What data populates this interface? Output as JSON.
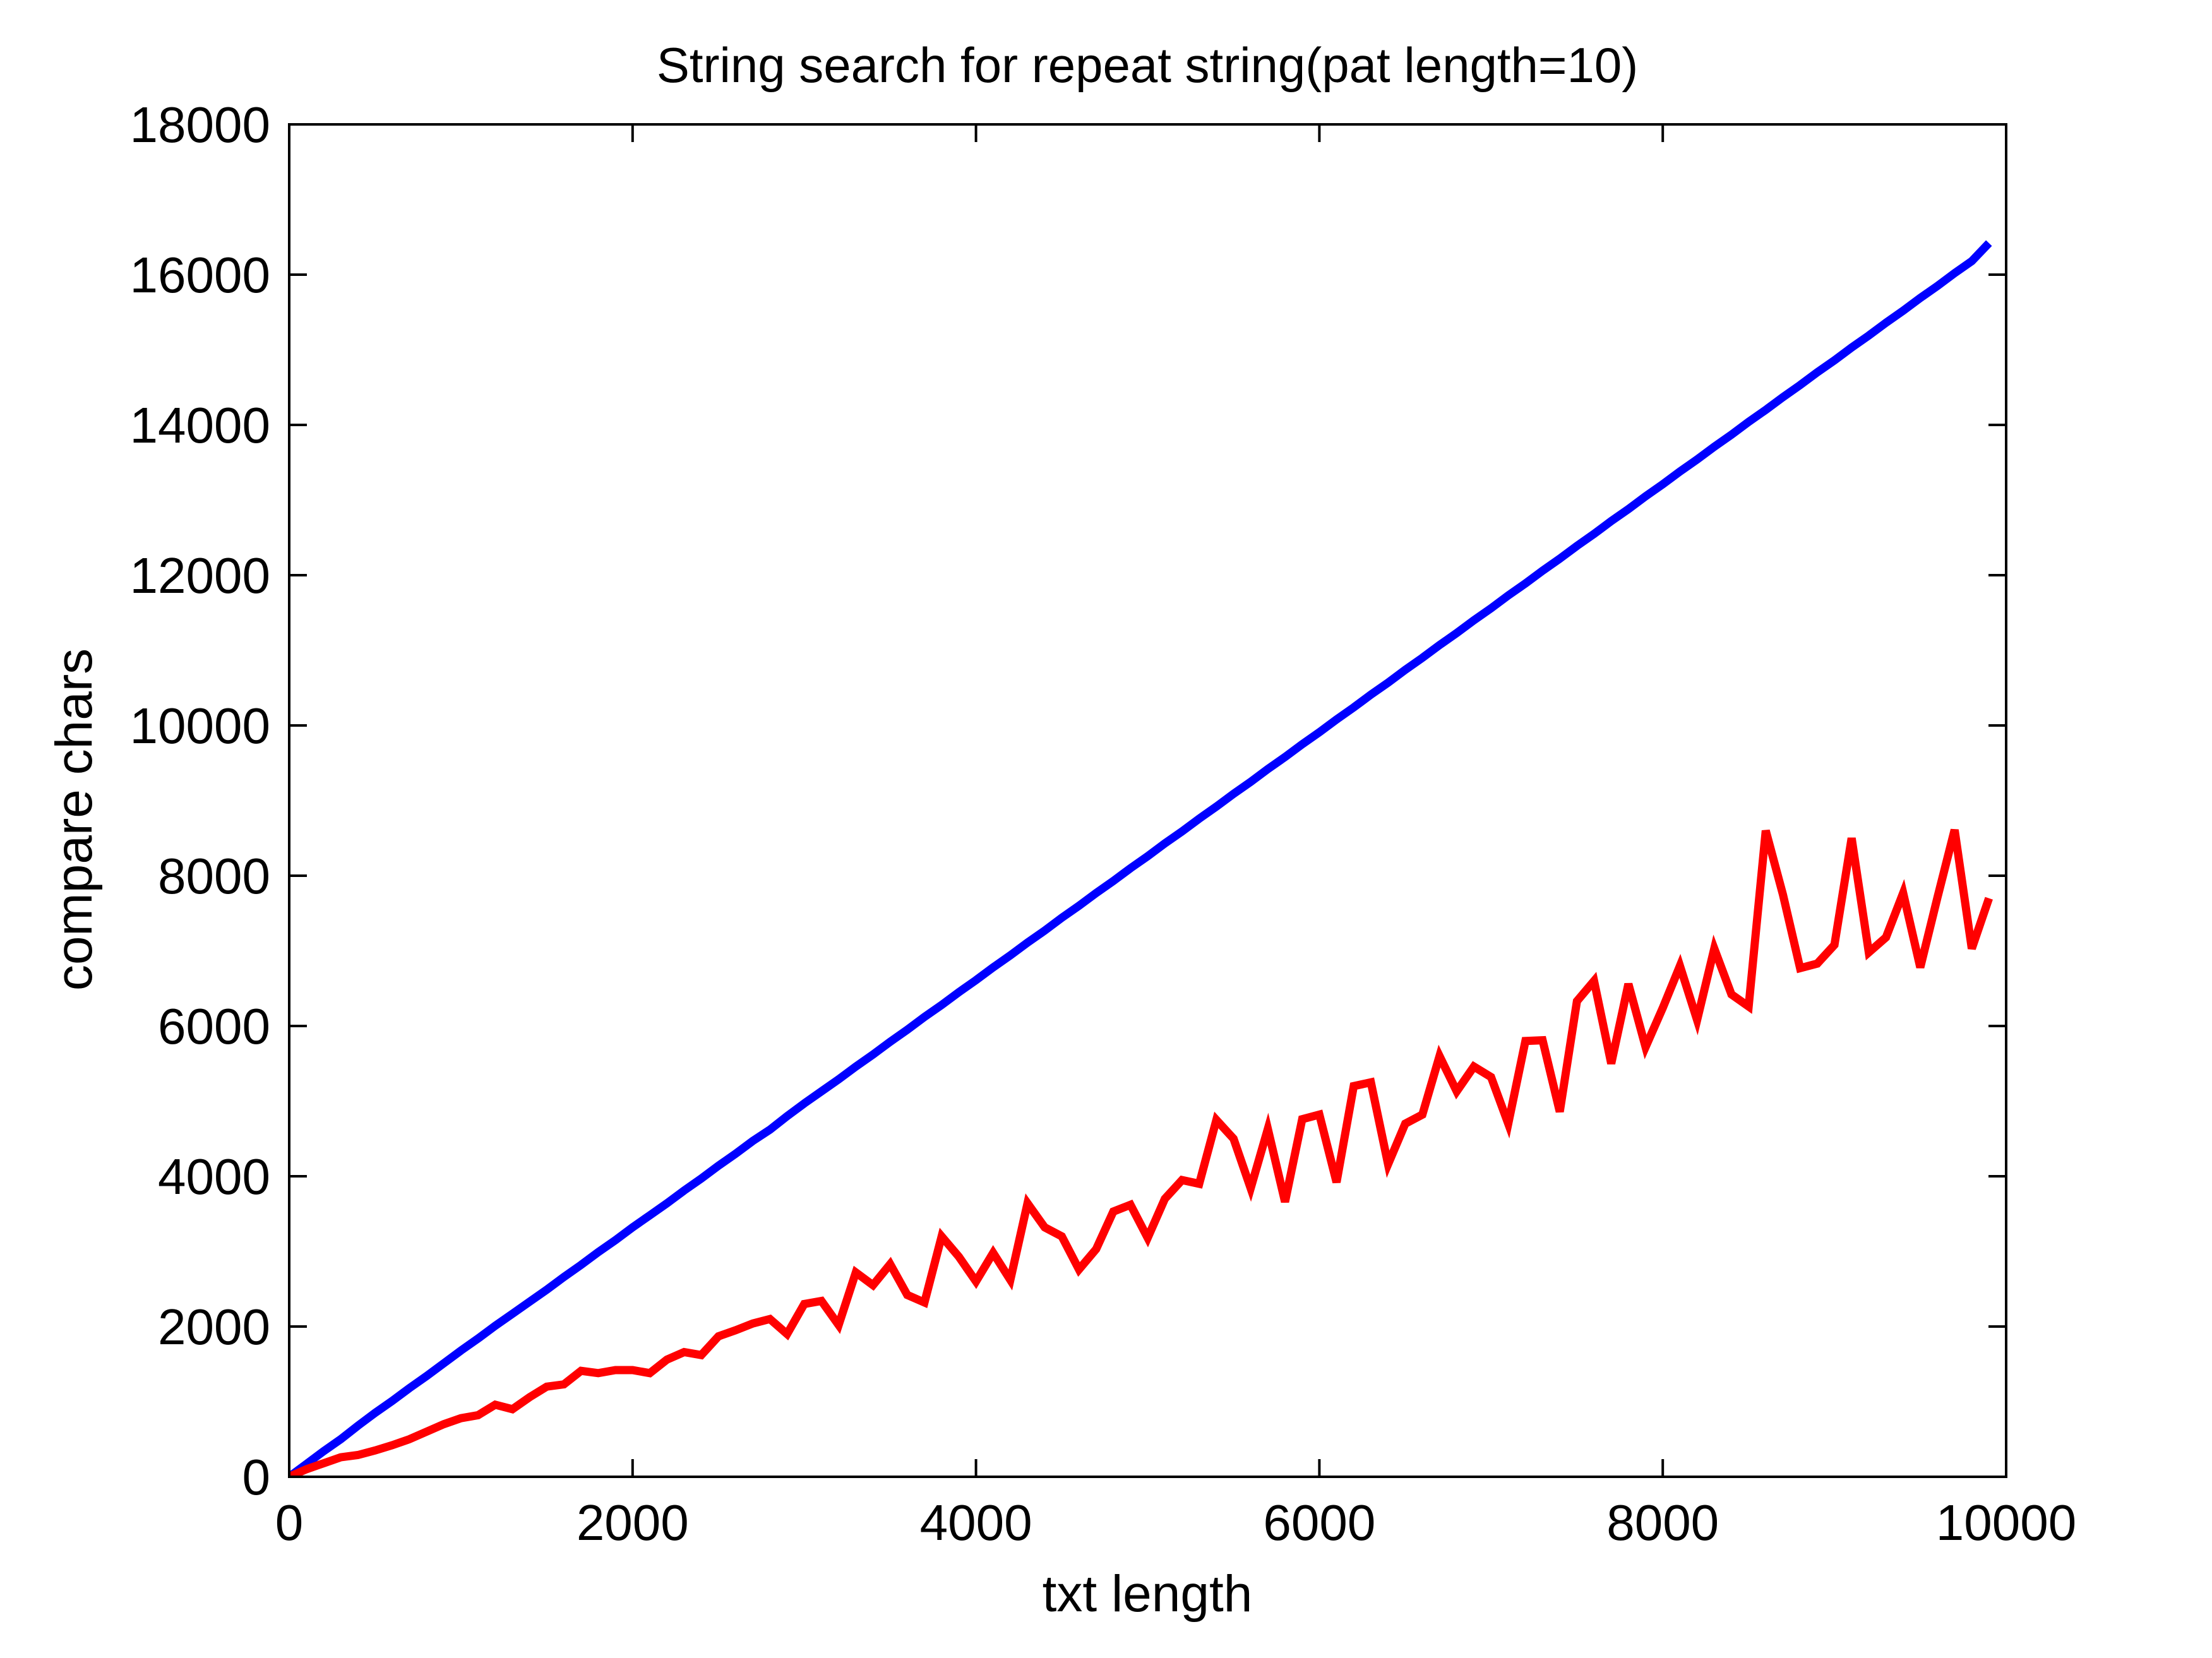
{
  "chart_data": {
    "type": "line",
    "title": "String search for repeat string(pat length=10)",
    "xlabel": "txt length",
    "ylabel": "compare chars",
    "xlim": [
      0,
      10000
    ],
    "ylim": [
      0,
      18000
    ],
    "xticks": [
      0,
      2000,
      4000,
      6000,
      8000,
      10000
    ],
    "yticks": [
      0,
      2000,
      4000,
      6000,
      8000,
      10000,
      12000,
      14000,
      16000,
      18000
    ],
    "xtick_labels": [
      "0",
      "2000",
      "4000",
      "6000",
      "8000",
      "10000"
    ],
    "ytick_labels": [
      "0",
      "2000",
      "4000",
      "6000",
      "8000",
      "10000",
      "12000",
      "14000",
      "16000",
      "18000"
    ],
    "grid": false,
    "box": true,
    "series": [
      {
        "color": "#0000ff",
        "x": [
          0,
          100,
          200,
          300,
          400,
          500,
          600,
          700,
          800,
          900,
          1000,
          1100,
          1200,
          1300,
          1400,
          1500,
          1600,
          1700,
          1800,
          1900,
          2000,
          2100,
          2200,
          2300,
          2400,
          2500,
          2600,
          2700,
          2800,
          2900,
          3000,
          3100,
          3200,
          3300,
          3400,
          3500,
          3600,
          3700,
          3800,
          3900,
          4000,
          4100,
          4200,
          4300,
          4400,
          4500,
          4600,
          4700,
          4800,
          4900,
          5000,
          5100,
          5200,
          5300,
          5400,
          5500,
          5600,
          5700,
          5800,
          5900,
          6000,
          6100,
          6200,
          6300,
          6400,
          6500,
          6600,
          6700,
          6800,
          6900,
          7000,
          7100,
          7200,
          7300,
          7400,
          7500,
          7600,
          7700,
          7800,
          7900,
          8000,
          8100,
          8200,
          8300,
          8400,
          8500,
          8600,
          8700,
          8800,
          8900,
          9000,
          9100,
          9200,
          9300,
          9400,
          9500,
          9600,
          9700,
          9800,
          9900
        ],
        "y": [
          0,
          170,
          340,
          500,
          680,
          850,
          1010,
          1180,
          1340,
          1510,
          1680,
          1840,
          2010,
          2170,
          2330,
          2490,
          2660,
          2820,
          2990,
          3150,
          3320,
          3480,
          3640,
          3810,
          3970,
          4140,
          4300,
          4470,
          4620,
          4800,
          4970,
          5130,
          5290,
          5460,
          5620,
          5790,
          5950,
          6120,
          6280,
          6450,
          6610,
          6780,
          6940,
          7110,
          7270,
          7440,
          7600,
          7770,
          7930,
          8100,
          8260,
          8430,
          8590,
          8760,
          8920,
          9090,
          9250,
          9420,
          9580,
          9750,
          9910,
          10080,
          10240,
          10410,
          10570,
          10740,
          10900,
          11070,
          11230,
          11400,
          11560,
          11730,
          11890,
          12060,
          12220,
          12390,
          12550,
          12720,
          12880,
          13050,
          13210,
          13380,
          13540,
          13710,
          13870,
          14040,
          14200,
          14370,
          14530,
          14700,
          14860,
          15030,
          15190,
          15360,
          15520,
          15690,
          15850,
          16020,
          16180,
          16420
        ]
      },
      {
        "color": "#ff0000",
        "x": [
          0,
          100,
          200,
          300,
          400,
          500,
          600,
          700,
          800,
          900,
          1000,
          1100,
          1200,
          1300,
          1400,
          1500,
          1600,
          1700,
          1800,
          1900,
          2000,
          2100,
          2200,
          2300,
          2400,
          2500,
          2600,
          2700,
          2800,
          2900,
          3000,
          3100,
          3200,
          3300,
          3400,
          3500,
          3600,
          3700,
          3800,
          3900,
          4000,
          4100,
          4200,
          4300,
          4400,
          4500,
          4600,
          4700,
          4800,
          4900,
          5000,
          5100,
          5200,
          5300,
          5400,
          5500,
          5600,
          5700,
          5800,
          5900,
          6000,
          6100,
          6200,
          6300,
          6400,
          6500,
          6600,
          6700,
          6800,
          6900,
          7000,
          7100,
          7200,
          7300,
          7400,
          7500,
          7600,
          7700,
          7800,
          7900,
          8000,
          8100,
          8200,
          8300,
          8400,
          8500,
          8600,
          8700,
          8800,
          8900,
          9000,
          9100,
          9200,
          9300,
          9400,
          9500,
          9600,
          9700,
          9800,
          9900
        ],
        "y": [
          0,
          100,
          180,
          260,
          290,
          350,
          420,
          500,
          600,
          700,
          780,
          820,
          960,
          900,
          1060,
          1200,
          1230,
          1410,
          1380,
          1420,
          1420,
          1380,
          1560,
          1660,
          1620,
          1870,
          1950,
          2040,
          2100,
          1900,
          2300,
          2340,
          2020,
          2720,
          2550,
          2830,
          2420,
          2320,
          3200,
          2930,
          2600,
          2980,
          2620,
          3640,
          3320,
          3200,
          2760,
          3030,
          3530,
          3620,
          3180,
          3700,
          3950,
          3900,
          4750,
          4500,
          3840,
          4630,
          3660,
          4760,
          4820,
          3920,
          5200,
          5250,
          4160,
          4700,
          4820,
          5600,
          5130,
          5460,
          5320,
          4700,
          5800,
          5810,
          4860,
          6330,
          6600,
          5500,
          6560,
          5720,
          6240,
          6800,
          6080,
          7030,
          6420,
          6260,
          8600,
          7750,
          6770,
          6830,
          7080,
          8500,
          6980,
          7180,
          7770,
          6780,
          7710,
          8610,
          7030,
          7700
        ]
      }
    ]
  }
}
